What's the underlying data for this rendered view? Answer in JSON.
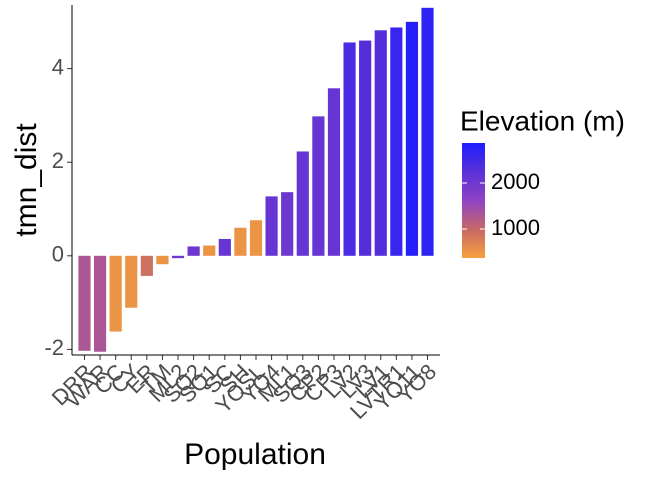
{
  "chart_data": {
    "type": "bar",
    "x_label": "Population",
    "y_label": "tmn_dist",
    "categories": [
      "DRR",
      "WAR",
      "CC",
      "CY",
      "ER",
      "TM",
      "ML2",
      "SQ2",
      "SQ1",
      "SC",
      "SH",
      "YOSL",
      "YO4",
      "ML1",
      "SQ3",
      "CP2",
      "CP3",
      "LV2",
      "LV3",
      "LV1",
      "LVTR1",
      "YO11",
      "YO8"
    ],
    "values": [
      -2.03,
      -2.05,
      -1.62,
      -1.11,
      -0.43,
      -0.18,
      -0.05,
      0.2,
      0.22,
      0.36,
      0.6,
      0.76,
      1.27,
      1.36,
      2.23,
      2.98,
      3.58,
      4.56,
      4.6,
      4.82,
      4.88,
      5.0,
      5.3
    ],
    "elevation": [
      1300,
      1300,
      500,
      500,
      900,
      500,
      2000,
      2000,
      500,
      2100,
      500,
      500,
      2100,
      2000,
      2100,
      2100,
      2100,
      2400,
      2300,
      2300,
      2600,
      2800,
      2700
    ],
    "ylim": [
      -2.12,
      5.36
    ],
    "yticks": [
      -2,
      0,
      2,
      4
    ],
    "legend": {
      "title": "Elevation (m)",
      "lim": [
        370,
        2870
      ],
      "ticks": [
        1000,
        2000
      ],
      "colors": [
        "#f6a03c",
        "#c66868",
        "#8e44c4",
        "#5a30d8",
        "#1e1eff"
      ]
    }
  }
}
